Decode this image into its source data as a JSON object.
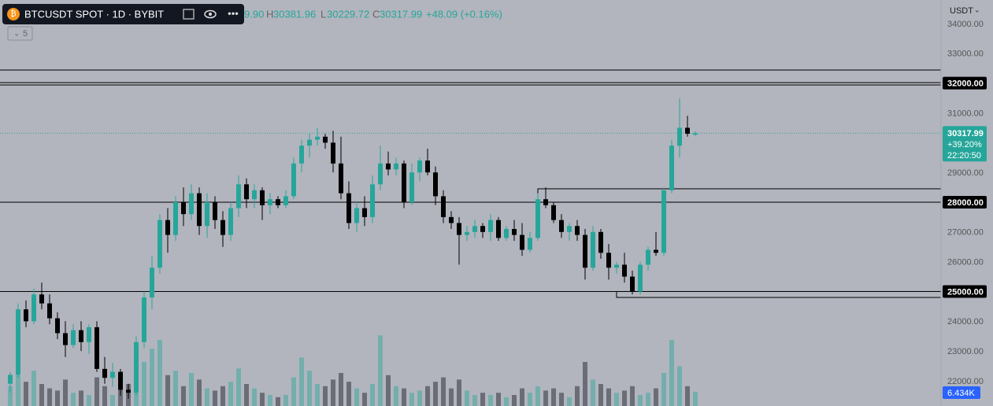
{
  "legend_bar": {
    "symbol": "BTCUSDT SPOT · 1D · BYBIT",
    "open_fragment": "9.90",
    "high_label": "H",
    "high": "30381.96",
    "low_label": "L",
    "low": "30229.72",
    "close_label": "C",
    "close": "30317.99",
    "change": "+48.09 (+0.16%)",
    "collapsed_count": "5",
    "currency": "USDT"
  },
  "chart_data": {
    "type": "candlestick",
    "ylim": [
      21700,
      34300
    ],
    "yticks": [
      {
        "value": 34000,
        "label": "34000.00"
      },
      {
        "value": 33000,
        "label": "33000.00"
      },
      {
        "value": 32000,
        "label": "32000.00",
        "highlight": true
      },
      {
        "value": 31000,
        "label": "31000.00"
      },
      {
        "value": 29000,
        "label": "29000.00"
      },
      {
        "value": 28000,
        "label": "28000.00",
        "highlight": true
      },
      {
        "value": 27000,
        "label": "27000.00"
      },
      {
        "value": 26000,
        "label": "26000.00"
      },
      {
        "value": 25000,
        "label": "25000.00",
        "highlight": true
      },
      {
        "value": 24000,
        "label": "24000.00"
      },
      {
        "value": 23000,
        "label": "23000.00"
      },
      {
        "value": 22000,
        "label": "22000.00"
      }
    ],
    "grid": false,
    "up_color": "#26a69a",
    "down_color": "#000000",
    "last_price": {
      "value": 30317.99,
      "label": "30317.99",
      "change": "+39.20%",
      "countdown": "22:20:50"
    },
    "levels": [
      32440,
      32017,
      31938,
      28000,
      25000
    ],
    "zones": [
      {
        "start": 67,
        "top": 28450,
        "bottom": 28000
      },
      {
        "start": 77,
        "top": 25000,
        "bottom": 24800
      }
    ],
    "ohlc": [
      [
        21900,
        22300,
        21600,
        22200
      ],
      [
        22200,
        24600,
        22100,
        24400
      ],
      [
        24400,
        24700,
        23800,
        24000
      ],
      [
        24000,
        25100,
        23900,
        24900
      ],
      [
        24900,
        25300,
        24400,
        24600
      ],
      [
        24600,
        24900,
        23900,
        24100
      ],
      [
        24100,
        24300,
        23400,
        23600
      ],
      [
        23600,
        24000,
        22800,
        23200
      ],
      [
        23200,
        23900,
        23100,
        23700
      ],
      [
        23700,
        24000,
        23000,
        23300
      ],
      [
        23300,
        23900,
        22900,
        23800
      ],
      [
        23800,
        24000,
        22300,
        22400
      ],
      [
        22400,
        22800,
        21900,
        22100
      ],
      [
        22100,
        22600,
        21800,
        22300
      ],
      [
        22300,
        22400,
        21500,
        21700
      ],
      [
        21700,
        21900,
        21400,
        21600
      ],
      [
        21600,
        23500,
        21500,
        23300
      ],
      [
        23300,
        25000,
        23100,
        24800
      ],
      [
        24800,
        26200,
        24400,
        25800
      ],
      [
        25800,
        27600,
        25600,
        27400
      ],
      [
        27400,
        27800,
        26300,
        26900
      ],
      [
        26900,
        28200,
        26700,
        28000
      ],
      [
        28000,
        28500,
        27200,
        27600
      ],
      [
        27600,
        28600,
        27400,
        28300
      ],
      [
        28300,
        28500,
        26900,
        27200
      ],
      [
        27200,
        28300,
        26800,
        28000
      ],
      [
        28000,
        28200,
        27100,
        27400
      ],
      [
        27400,
        27700,
        26500,
        26900
      ],
      [
        26900,
        28000,
        26700,
        27800
      ],
      [
        27800,
        28900,
        27500,
        28600
      ],
      [
        28600,
        28800,
        27800,
        28100
      ],
      [
        28100,
        28600,
        27800,
        28400
      ],
      [
        28400,
        28500,
        27400,
        27900
      ],
      [
        27900,
        28300,
        27600,
        28100
      ],
      [
        28100,
        28200,
        27800,
        27900
      ],
      [
        27900,
        28400,
        27800,
        28200
      ],
      [
        28200,
        29500,
        28100,
        29300
      ],
      [
        29300,
        30100,
        29000,
        29900
      ],
      [
        29900,
        30300,
        29500,
        30100
      ],
      [
        30100,
        30500,
        29900,
        30200
      ],
      [
        30200,
        30300,
        29800,
        30000
      ],
      [
        30000,
        30400,
        29000,
        29300
      ],
      [
        29300,
        30200,
        28100,
        28300
      ],
      [
        28300,
        28700,
        27100,
        27300
      ],
      [
        27300,
        28000,
        27000,
        27800
      ],
      [
        27800,
        28200,
        27200,
        27500
      ],
      [
        27500,
        28900,
        27300,
        28600
      ],
      [
        28600,
        29900,
        28400,
        29300
      ],
      [
        29300,
        29700,
        28900,
        29100
      ],
      [
        29100,
        29500,
        28900,
        29300
      ],
      [
        29300,
        29400,
        27800,
        28000
      ],
      [
        28000,
        29300,
        27900,
        29000
      ],
      [
        29000,
        29500,
        28700,
        29400
      ],
      [
        29400,
        29800,
        28900,
        29000
      ],
      [
        29000,
        29200,
        27900,
        28200
      ],
      [
        28200,
        28400,
        27300,
        27500
      ],
      [
        27500,
        27700,
        27100,
        27300
      ],
      [
        27300,
        27500,
        25900,
        26900
      ],
      [
        26900,
        27200,
        26700,
        27000
      ],
      [
        27000,
        27400,
        26800,
        27200
      ],
      [
        27200,
        27300,
        26800,
        27000
      ],
      [
        27000,
        27600,
        26700,
        27400
      ],
      [
        27400,
        27500,
        26700,
        26800
      ],
      [
        26800,
        27200,
        26700,
        27100
      ],
      [
        27100,
        27400,
        26700,
        26900
      ],
      [
        26900,
        27300,
        26200,
        26400
      ],
      [
        26400,
        27000,
        26300,
        26800
      ],
      [
        26800,
        28300,
        26700,
        28100
      ],
      [
        28100,
        28500,
        27800,
        27900
      ],
      [
        27900,
        28000,
        27300,
        27400
      ],
      [
        27400,
        27600,
        26800,
        27000
      ],
      [
        27000,
        27300,
        26700,
        27200
      ],
      [
        27200,
        27400,
        26700,
        26900
      ],
      [
        26900,
        27100,
        25400,
        25800
      ],
      [
        25800,
        27200,
        25700,
        27000
      ],
      [
        27000,
        27100,
        26100,
        26300
      ],
      [
        26300,
        26600,
        25400,
        25800
      ],
      [
        25800,
        26000,
        25600,
        25900
      ],
      [
        25900,
        26300,
        25300,
        25500
      ],
      [
        25500,
        25700,
        24900,
        25000
      ],
      [
        25000,
        26000,
        24900,
        25900
      ],
      [
        25900,
        26500,
        25700,
        26400
      ],
      [
        26400,
        27000,
        26200,
        26300
      ],
      [
        26300,
        28500,
        26200,
        28400
      ],
      [
        28400,
        30100,
        28300,
        29900
      ],
      [
        29900,
        31500,
        29500,
        30500
      ],
      [
        30500,
        30900,
        30200,
        30300
      ],
      [
        30270,
        30382,
        30230,
        30318
      ]
    ],
    "volume": {
      "values": [
        9000,
        14000,
        11000,
        16000,
        10000,
        8000,
        7000,
        12000,
        6000,
        7000,
        5000,
        13000,
        9000,
        5000,
        8000,
        10000,
        15000,
        20000,
        26000,
        30000,
        14000,
        16000,
        9000,
        15000,
        12000,
        8000,
        7000,
        9000,
        11000,
        17000,
        10000,
        8000,
        6000,
        5000,
        4000,
        5000,
        13000,
        22000,
        16000,
        10000,
        9000,
        12000,
        15000,
        11000,
        8000,
        6000,
        10000,
        32000,
        14000,
        9000,
        8000,
        6000,
        7000,
        9000,
        11000,
        13000,
        8000,
        12000,
        7000,
        5000,
        6000,
        5000,
        6000,
        4000,
        5000,
        8000,
        6000,
        9000,
        7000,
        8000,
        6000,
        4000,
        9000,
        20000,
        12000,
        10000,
        8000,
        6000,
        7000,
        9000,
        5000,
        6000,
        8000,
        15000,
        30000,
        18000,
        9000,
        6434
      ],
      "last_label": "6.434K",
      "color": "#2962ff"
    }
  }
}
